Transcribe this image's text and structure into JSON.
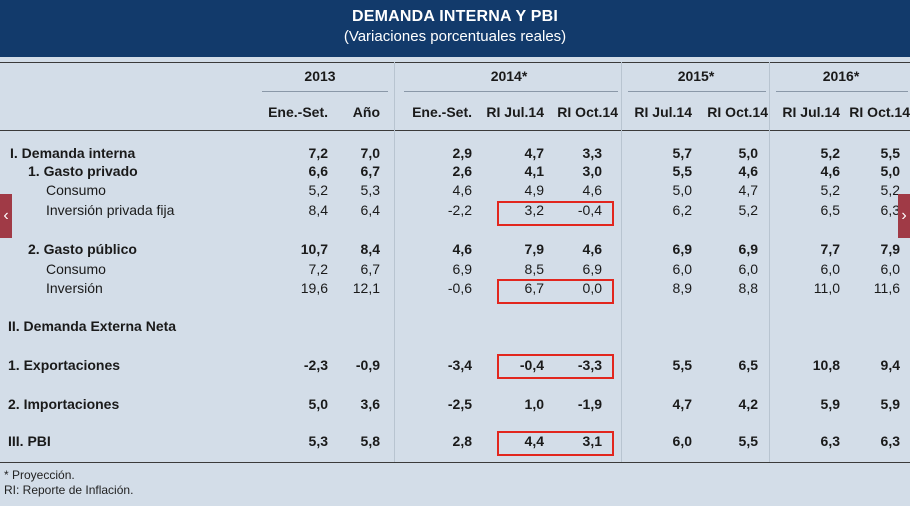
{
  "header": {
    "title": "DEMANDA INTERNA Y PBI",
    "subtitle": "(Variaciones porcentuales reales)"
  },
  "years": [
    "2013",
    "2014*",
    "2015*",
    "2016*"
  ],
  "columns": [
    "Ene.-Set.",
    "Año",
    "Ene.-Set.",
    "RI Jul.14",
    "RI Oct.14",
    "RI Jul.14",
    "RI Oct.14",
    "RI Jul.14",
    "RI Oct.14"
  ],
  "rows": [
    {
      "label": "I.   Demanda interna",
      "bold": true,
      "values": [
        "7,2",
        "7,0",
        "2,9",
        "4,7",
        "3,3",
        "5,7",
        "5,0",
        "5,2",
        "5,5"
      ]
    },
    {
      "label": "1. Gasto privado",
      "bold": true,
      "values": [
        "6,6",
        "6,7",
        "2,6",
        "4,1",
        "3,0",
        "5,5",
        "4,6",
        "4,6",
        "5,0"
      ]
    },
    {
      "label": "Consumo",
      "bold": false,
      "values": [
        "5,2",
        "5,3",
        "4,6",
        "4,9",
        "4,6",
        "5,0",
        "4,7",
        "5,2",
        "5,2"
      ]
    },
    {
      "label": "Inversión privada fija",
      "bold": false,
      "values": [
        "8,4",
        "6,4",
        "-2,2",
        "3,2",
        "-0,4",
        "6,2",
        "5,2",
        "6,5",
        "6,3"
      ]
    },
    {
      "label": "2. Gasto público",
      "bold": true,
      "values": [
        "10,7",
        "8,4",
        "4,6",
        "7,9",
        "4,6",
        "6,9",
        "6,9",
        "7,7",
        "7,9"
      ]
    },
    {
      "label": "Consumo",
      "bold": false,
      "values": [
        "7,2",
        "6,7",
        "6,9",
        "8,5",
        "6,9",
        "6,0",
        "6,0",
        "6,0",
        "6,0"
      ]
    },
    {
      "label": "Inversión",
      "bold": false,
      "values": [
        "19,6",
        "12,1",
        "-0,6",
        "6,7",
        "0,0",
        "8,9",
        "8,8",
        "11,0",
        "11,6"
      ]
    },
    {
      "label": "II. Demanda Externa Neta",
      "bold": true,
      "values": []
    },
    {
      "label": "1. Exportaciones",
      "bold": true,
      "values": [
        "-2,3",
        "-0,9",
        "-3,4",
        "-0,4",
        "-3,3",
        "5,5",
        "6,5",
        "10,8",
        "9,4"
      ]
    },
    {
      "label": "2. Importaciones",
      "bold": true,
      "values": [
        "5,0",
        "3,6",
        "-2,5",
        "1,0",
        "-1,9",
        "4,7",
        "4,2",
        "5,9",
        "5,9"
      ]
    },
    {
      "label": "III. PBI",
      "bold": true,
      "values": [
        "5,3",
        "5,8",
        "2,8",
        "4,4",
        "3,1",
        "6,0",
        "5,5",
        "6,3",
        "6,3"
      ]
    }
  ],
  "footnotes": [
    "* Proyección.",
    "RI: Reporte de Inflación."
  ],
  "nav": {
    "prev_icon": "‹",
    "next_icon": "›"
  },
  "colors": {
    "header_bg": "#123a6b",
    "panel_bg": "#d3dde8",
    "highlight": "#e2261e"
  }
}
